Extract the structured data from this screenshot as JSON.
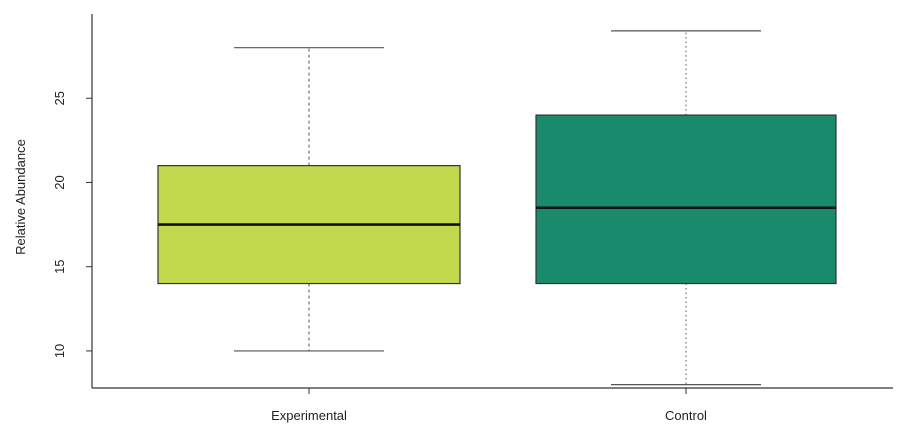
{
  "chart_data": {
    "type": "box",
    "title": "",
    "xlabel": "",
    "ylabel": "Relative Abundance",
    "ylim": [
      7.8,
      30.0
    ],
    "yticks": [
      10,
      15,
      20,
      25
    ],
    "ytick_labels": [
      "10",
      "15",
      "20",
      "25"
    ],
    "grid": false,
    "categories": [
      "Experimental",
      "Control"
    ],
    "series": [
      {
        "category": "Experimental",
        "whisker_low": 10,
        "q1": 14,
        "median": 17.5,
        "q3": 21,
        "whisker_high": 28,
        "fill": "#c2d94e",
        "whisker_style": "dashed"
      },
      {
        "category": "Control",
        "whisker_low": 8,
        "q1": 14,
        "median": 18.5,
        "q3": 24,
        "whisker_high": 29,
        "fill": "#1a8a6c",
        "whisker_style": "dotted"
      }
    ],
    "colors": {
      "axis": "#333333",
      "median": "#111111",
      "whisker": "#555555",
      "box_border": "#333333"
    }
  }
}
